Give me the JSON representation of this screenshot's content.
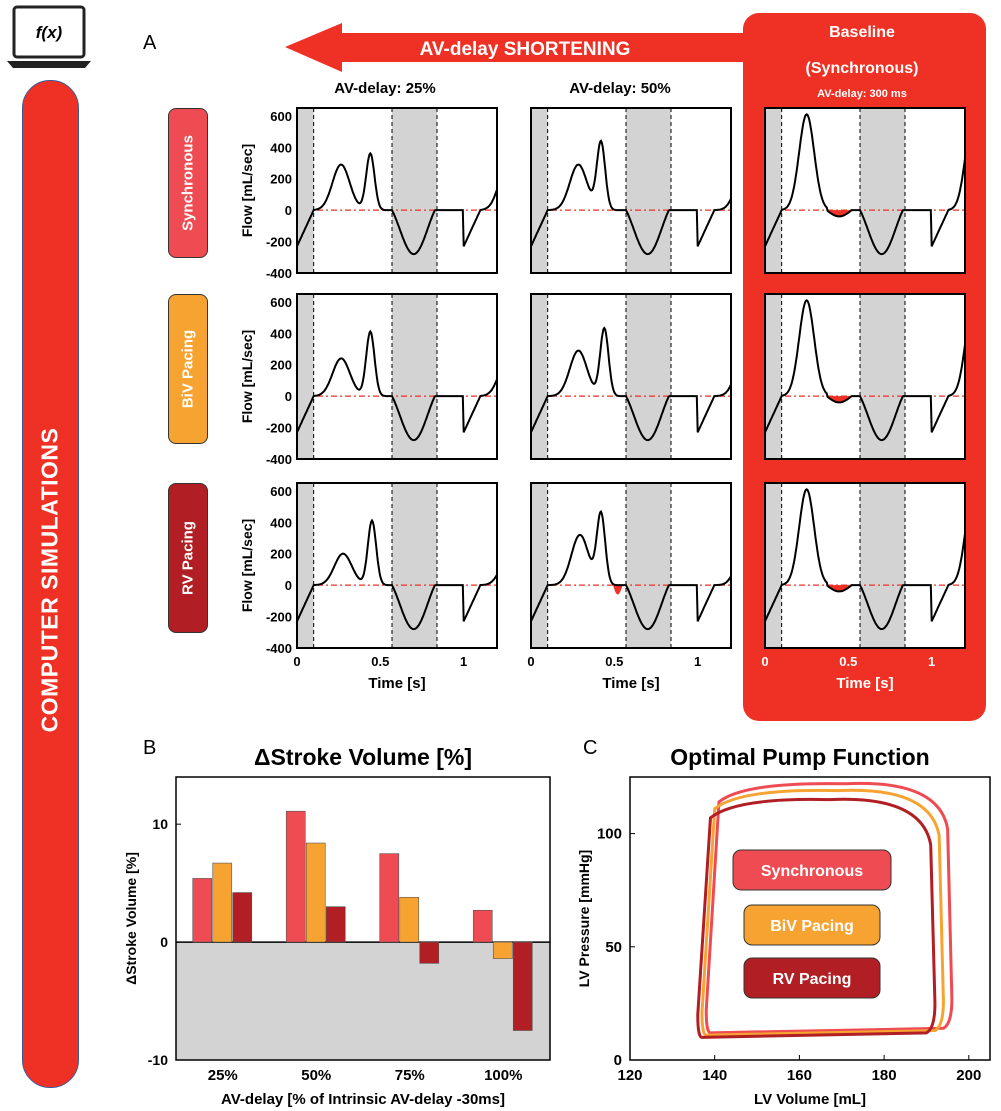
{
  "sidebar": {
    "title": "COMPUTER SIMULATIONS",
    "function_symbol": "f(x)",
    "icon": "laptop-icon"
  },
  "panel_letters": {
    "a": "A",
    "b": "B",
    "c": "C"
  },
  "arrow": {
    "label": "AV-delay SHORTENING"
  },
  "baseline": {
    "line1": "Baseline",
    "line2": "(Synchronous)",
    "line3": "AV-delay: 300 ms"
  },
  "colors": {
    "synchronous": "#ee4b53",
    "biv": "#f7a332",
    "rv": "#b11e24",
    "accent_red": "#ee3124",
    "shading": "#d3d3d3"
  },
  "rows": [
    {
      "label": "Synchronous",
      "color": "#ee4b53"
    },
    {
      "label": "BiV Pacing",
      "color": "#f7a332"
    },
    {
      "label": "RV Pacing",
      "color": "#b11e24"
    }
  ],
  "chart_data": [
    {
      "type": "line",
      "id": "A",
      "column_titles": [
        "AV-delay: 25%",
        "AV-delay: 50%",
        ""
      ],
      "ylabel": "Flow [mL/sec]",
      "xlabel": "Time [s]",
      "xlim": [
        0,
        1.2
      ],
      "ylim": [
        -400,
        650
      ],
      "yticks": [
        -400,
        -200,
        0,
        200,
        400,
        600
      ],
      "xticks": [
        0,
        0.5,
        1
      ],
      "xtick_labels": [
        "0",
        "0.5",
        "1"
      ],
      "ytick_labels": [
        "-400",
        "-200",
        "0",
        "200",
        "400",
        "600"
      ],
      "shaded_intervals_s": [
        [
          0,
          0.1
        ],
        [
          0.57,
          0.84
        ]
      ]
    },
    {
      "type": "bar",
      "id": "B",
      "title": "ΔStroke Volume [%]",
      "xlabel": "AV-delay [% of Intrinsic AV-delay -30ms]",
      "ylabel": "ΔStroke Volume [%]",
      "categories": [
        "25%",
        "50%",
        "75%",
        "100%"
      ],
      "ylim": [
        -10,
        14
      ],
      "yticks": [
        -10,
        0,
        10
      ],
      "ytick_labels": [
        "-10",
        "0",
        "10"
      ],
      "series": [
        {
          "name": "Synchronous",
          "values": [
            5.4,
            11.1,
            7.5,
            2.7
          ]
        },
        {
          "name": "BiV Pacing",
          "values": [
            6.7,
            8.4,
            3.8,
            -1.4
          ]
        },
        {
          "name": "RV Pacing",
          "values": [
            4.2,
            3.0,
            -1.8,
            -7.5
          ]
        }
      ]
    },
    {
      "type": "line",
      "id": "C",
      "title": "Optimal Pump Function",
      "xlabel": "LV Volume [mL]",
      "ylabel": "LV Pressure [mmHg]",
      "xlim": [
        120,
        205
      ],
      "ylim": [
        0,
        125
      ],
      "xticks": [
        120,
        140,
        160,
        180,
        200
      ],
      "yticks": [
        0,
        50,
        100
      ],
      "xtick_labels": [
        "120",
        "140",
        "160",
        "180",
        "200"
      ],
      "ytick_labels": [
        "0",
        "50",
        "100"
      ],
      "legend": [
        "Synchronous",
        "BiV Pacing",
        "RV Pacing"
      ],
      "series": [
        {
          "name": "Synchronous",
          "edv": 196,
          "esv": 139,
          "peak_pressure": 122,
          "min_pressure": 12
        },
        {
          "name": "BiV Pacing",
          "edv": 194,
          "esv": 138,
          "peak_pressure": 119,
          "min_pressure": 11
        },
        {
          "name": "RV Pacing",
          "edv": 192,
          "esv": 137,
          "peak_pressure": 115,
          "min_pressure": 10
        }
      ]
    }
  ]
}
